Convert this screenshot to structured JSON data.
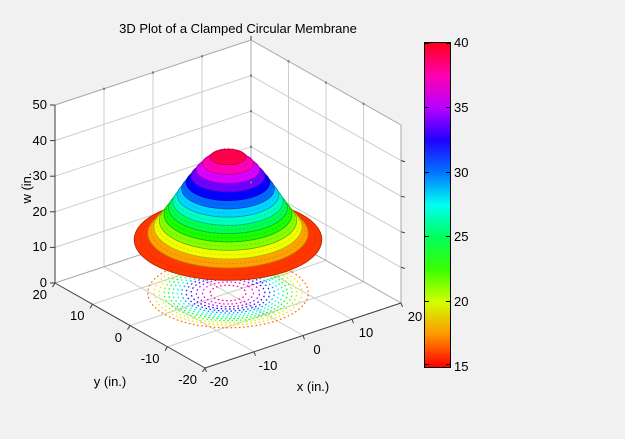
{
  "window": {
    "background": "#f1f1f1"
  },
  "chart_data": {
    "type": "surface3d_with_contour",
    "title": "3D Plot of a Clamped Circular Membrane",
    "xlabel": "x (in.)",
    "ylabel": "y  (in.)",
    "zlabel": "w (in.",
    "x_range": [
      -20,
      20
    ],
    "y_range": [
      -20,
      20
    ],
    "z_range": [
      0,
      50
    ],
    "x_ticks": [
      -20,
      -10,
      0,
      10,
      20
    ],
    "y_ticks": [
      20,
      10,
      0,
      -10,
      -20
    ],
    "z_ticks": [
      0,
      10,
      20,
      30,
      40,
      50
    ],
    "grid": true,
    "view": "MATLAB default 3D (az -37.5, el 30)",
    "membrane": {
      "radius_in": 15.2,
      "w_rim": 15,
      "w_peak": 40,
      "profile": "w(r) = 15 + 25*(1 - (r/15.2)^2)^2"
    },
    "colormap": "hsv",
    "color_axis_range": [
      15,
      40
    ],
    "colormap_stops": [
      "#ff0000",
      "#ff9600",
      "#d1ff00",
      "#3bff00",
      "#00ff5c",
      "#00fff2",
      "#0075ff",
      "#2100ff",
      "#b800ff",
      "#ff00b0",
      "#ff001a"
    ],
    "surface_bands": [
      {
        "r": 15.2,
        "w": 15.0,
        "color": "#ff3600"
      },
      {
        "r": 13.01,
        "w": 16.79,
        "color": "#ffa100"
      },
      {
        "r": 11.99,
        "w": 18.57,
        "color": "#f1ff00"
      },
      {
        "r": 11.14,
        "w": 20.36,
        "color": "#86ff00"
      },
      {
        "r": 10.37,
        "w": 22.14,
        "color": "#1aff00"
      },
      {
        "r": 9.64,
        "w": 23.93,
        "color": "#00ff52"
      },
      {
        "r": 8.93,
        "w": 25.71,
        "color": "#00ffbe"
      },
      {
        "r": 8.23,
        "w": 27.5,
        "color": "#00d5ff"
      },
      {
        "r": 7.51,
        "w": 29.29,
        "color": "#0069ff"
      },
      {
        "r": 6.77,
        "w": 31.07,
        "color": "#0300ff"
      },
      {
        "r": 5.98,
        "w": 32.86,
        "color": "#6e00ff"
      },
      {
        "r": 5.12,
        "w": 34.64,
        "color": "#da00ff"
      },
      {
        "r": 4.13,
        "w": 36.43,
        "color": "#ff00b8"
      },
      {
        "r": 2.9,
        "w": 38.21,
        "color": "#ff004d"
      }
    ],
    "floor_contours": [
      {
        "r": 13.01,
        "level": 16.79,
        "color": "#ff6c00"
      },
      {
        "r": 11.99,
        "level": 18.57,
        "color": "#ffd700"
      },
      {
        "r": 11.14,
        "level": 20.36,
        "color": "#bbff00"
      },
      {
        "r": 10.37,
        "level": 22.14,
        "color": "#50ff00"
      },
      {
        "r": 9.64,
        "level": 23.93,
        "color": "#00ff1b"
      },
      {
        "r": 8.93,
        "level": 25.71,
        "color": "#00ff87"
      },
      {
        "r": 8.23,
        "level": 27.5,
        "color": "#00fff2"
      },
      {
        "r": 7.51,
        "level": 29.29,
        "color": "#00a0ff"
      },
      {
        "r": 6.77,
        "level": 31.07,
        "color": "#0035ff"
      },
      {
        "r": 5.98,
        "level": 32.86,
        "color": "#3700ff"
      },
      {
        "r": 5.12,
        "level": 34.64,
        "color": "#a200ff"
      },
      {
        "r": 4.13,
        "level": 36.43,
        "color": "#ff00f1"
      },
      {
        "r": 2.9,
        "level": 38.21,
        "color": "#ff0085"
      }
    ],
    "colorbar": {
      "location": "right",
      "tick_labels": [
        "40",
        "35",
        "30",
        "25",
        "20",
        "15"
      ]
    }
  }
}
